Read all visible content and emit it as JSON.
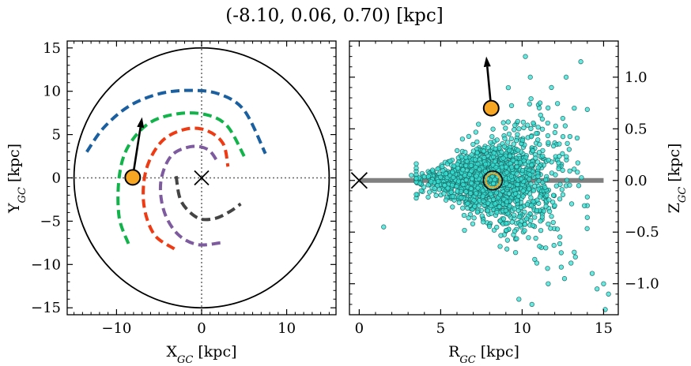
{
  "title": "(-8.10, 0.06, 0.70) [kpc]",
  "colors": {
    "sun": "#f6a623",
    "stars": "#38e0d4",
    "star_edge": "#1d6f6a",
    "disk_plane": "#808080",
    "arm_outer": "#1a5fa0",
    "arm_green": "#11b34a",
    "arm_red": "#ee3b14",
    "arm_purple": "#7d5b9e",
    "arm_inner": "#444444"
  },
  "chart_data": [
    {
      "type": "line",
      "panel": "left",
      "xlabel": "X_GC [kpc]",
      "ylabel": "Y_GC [kpc]",
      "xlim": [
        -15.8,
        15.8
      ],
      "ylim": [
        -15.8,
        15.8
      ],
      "xticks": [
        "−10",
        "0",
        "10"
      ],
      "yticks": [
        "15",
        "10",
        "5",
        "0",
        "−5",
        "−10",
        "−15"
      ],
      "grid": false,
      "reference_lines": {
        "x": 0,
        "y": 0
      },
      "boundary_circle_radius": 15,
      "galactic_center": [
        0,
        0
      ],
      "sun_position": [
        -8.1,
        0.06
      ],
      "sun_velocity_arrow_tip": [
        -7.0,
        7.0
      ],
      "spiral_arms": [
        {
          "color_key": "arm_outer",
          "points": [
            [
              -13.5,
              3.0
            ],
            [
              -11.5,
              5.8
            ],
            [
              -8.5,
              8.3
            ],
            [
              -5.0,
              9.7
            ],
            [
              -1.5,
              10.1
            ],
            [
              2.0,
              9.7
            ],
            [
              5.0,
              7.8
            ],
            [
              7.5,
              2.8
            ]
          ]
        },
        {
          "color_key": "arm_green",
          "points": [
            [
              -8.6,
              -7.6
            ],
            [
              -9.7,
              -4.5
            ],
            [
              -9.7,
              0.0
            ],
            [
              -8.7,
              3.5
            ],
            [
              -6.2,
              6.3
            ],
            [
              -2.8,
              7.4
            ],
            [
              0.5,
              7.3
            ],
            [
              3.0,
              6.0
            ],
            [
              5.0,
              2.5
            ]
          ]
        },
        {
          "color_key": "arm_red",
          "points": [
            [
              -3.2,
              -8.2
            ],
            [
              -5.6,
              -6.5
            ],
            [
              -6.8,
              -3.0
            ],
            [
              -6.5,
              1.0
            ],
            [
              -4.7,
              4.2
            ],
            [
              -2.0,
              5.6
            ],
            [
              0.5,
              5.5
            ],
            [
              2.5,
              4.0
            ],
            [
              3.1,
              1.3
            ]
          ]
        },
        {
          "color_key": "arm_purple",
          "points": [
            [
              2.2,
              -7.5
            ],
            [
              -0.5,
              -7.7
            ],
            [
              -2.8,
              -6.5
            ],
            [
              -4.4,
              -3.9
            ],
            [
              -4.8,
              -0.5
            ],
            [
              -3.6,
              2.5
            ],
            [
              -1.3,
              3.6
            ],
            [
              0.7,
              3.3
            ],
            [
              1.8,
              2.0
            ]
          ]
        },
        {
          "color_key": "arm_inner",
          "points": [
            [
              -3.0,
              0.2
            ],
            [
              -2.4,
              -2.7
            ],
            [
              -0.5,
              -4.6
            ],
            [
              1.5,
              -4.7
            ],
            [
              3.3,
              -3.9
            ],
            [
              4.6,
              -3.0
            ]
          ]
        }
      ]
    },
    {
      "type": "scatter",
      "panel": "right",
      "xlabel": "R_GC [kpc]",
      "ylabel": "Z_GC [kpc]",
      "xlim": [
        -0.6,
        15.9
      ],
      "ylim": [
        -1.3,
        1.35
      ],
      "xticks": [
        "0",
        "5",
        "10",
        "15"
      ],
      "yticks": [
        "1.0",
        "0.5",
        "0.0",
        "−0.5",
        "−1.0"
      ],
      "grid": false,
      "disk_plane": {
        "z": 0,
        "x_range": [
          0,
          15
        ]
      },
      "galactic_center": [
        0,
        0
      ],
      "sun_position": [
        8.1,
        0.7
      ],
      "sun_velocity_arrow_tip": [
        7.8,
        1.2
      ],
      "cluster_center": [
        8.2,
        0.0
      ],
      "n_points": 1500,
      "scatter_points": [
        [
          1.5,
          -0.45
        ],
        [
          3.2,
          0.05
        ],
        [
          3.8,
          -0.1
        ],
        [
          4.5,
          0.1
        ],
        [
          9.2,
          0.45
        ],
        [
          9.8,
          -1.15
        ],
        [
          10.2,
          1.2
        ],
        [
          10.5,
          1.0
        ],
        [
          11.8,
          0.9
        ],
        [
          12.4,
          -0.7
        ],
        [
          12.6,
          -0.95
        ],
        [
          13.0,
          -0.8
        ],
        [
          13.2,
          0.7
        ],
        [
          13.6,
          1.15
        ],
        [
          14.3,
          -0.9
        ],
        [
          14.6,
          -1.05
        ],
        [
          15.0,
          -1.0
        ],
        [
          15.3,
          -1.1
        ],
        [
          15.1,
          -1.25
        ],
        [
          11.6,
          -1.0
        ],
        [
          12.7,
          1.0
        ],
        [
          11.1,
          0.75
        ],
        [
          10.9,
          -0.8
        ],
        [
          10.6,
          -1.2
        ]
      ]
    }
  ]
}
